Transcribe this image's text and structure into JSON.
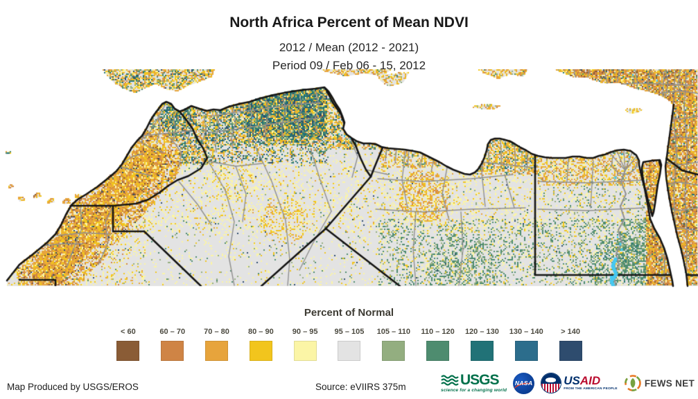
{
  "title": "North Africa Percent of Mean NDVI",
  "subtitle_line1": "2012 / Mean (2012 - 2021)",
  "subtitle_line2": "Period 09 / Feb 06 - 15, 2012",
  "legend": {
    "title": "Percent of Normal",
    "classes": [
      {
        "label": "< 60",
        "color": "#8a5c36"
      },
      {
        "label": "60 – 70",
        "color": "#cf8445"
      },
      {
        "label": "70 – 80",
        "color": "#e7a43c"
      },
      {
        "label": "80 – 90",
        "color": "#f2c51d"
      },
      {
        "label": "90 – 95",
        "color": "#fbf5a6"
      },
      {
        "label": "95 – 105",
        "color": "#e3e3e3"
      },
      {
        "label": "105 – 110",
        "color": "#93ae80"
      },
      {
        "label": "110 – 120",
        "color": "#4e8c6f"
      },
      {
        "label": "120 – 130",
        "color": "#217277"
      },
      {
        "label": "130 – 140",
        "color": "#2c6d8c"
      },
      {
        "label": "> 140",
        "color": "#2e4c6e"
      }
    ],
    "water_color": "#45c8f1"
  },
  "map": {
    "country_border_color": "#141414",
    "admin_border_color": "#8f8f8f",
    "sea_color": "#ffffff",
    "nodata_land_color": "#e3e3e3"
  },
  "footer": {
    "credit": "Map Produced by USGS/EROS",
    "source": "Source: eVIIRS 375m",
    "logos": {
      "usgs": {
        "text": "USGS",
        "tagline": "science for a changing world",
        "color": "#00704a"
      },
      "nasa": {
        "text": "NASA",
        "color": "#0b3d91",
        "accent": "#e03c31"
      },
      "usaid": {
        "text_us": "US",
        "text_aid": "AID",
        "tagline": "FROM THE AMERICAN PEOPLE",
        "blue": "#002f6c",
        "red": "#ba0c2f"
      },
      "fewsnet": {
        "text": "FEWS NET",
        "orange": "#e87722",
        "green": "#76a240",
        "text_color": "#3f3f3f"
      }
    }
  }
}
